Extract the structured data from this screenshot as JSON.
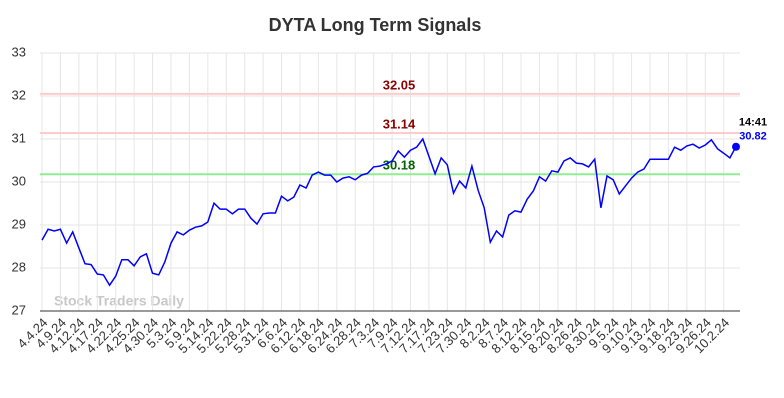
{
  "chart_data": {
    "type": "line",
    "title": "DYTA Long Term Signals",
    "categories": [
      "4.4.24",
      null,
      null,
      "4.9.24",
      null,
      null,
      "4.12.24",
      null,
      null,
      "4.17.24",
      null,
      null,
      "4.22.24",
      null,
      null,
      "4.25.24",
      null,
      null,
      "4.30.24",
      null,
      null,
      "5.3.24",
      null,
      null,
      "5.9.24",
      null,
      null,
      "5.14.24",
      null,
      null,
      "5.22.24",
      null,
      null,
      "5.28.24",
      null,
      null,
      "5.31.24",
      null,
      null,
      "6.6.24",
      null,
      null,
      "6.12.24",
      null,
      null,
      "6.18.24",
      null,
      null,
      "6.24.24",
      null,
      null,
      "6.28.24",
      null,
      null,
      "7.3.24",
      null,
      null,
      "7.9.24",
      null,
      null,
      "7.12.24",
      null,
      null,
      "7.17.24",
      null,
      null,
      "7.23.24",
      null,
      null,
      "7.30.24",
      null,
      null,
      "8.2.24",
      null,
      null,
      "8.7.24",
      null,
      null,
      "8.12.24",
      null,
      null,
      "8.15.24",
      null,
      null,
      "8.20.24",
      null,
      null,
      "8.26.24",
      null,
      null,
      "8.30.24",
      null,
      null,
      "9.5.24",
      null,
      null,
      "9.10.24",
      null,
      null,
      "9.13.24",
      null,
      null,
      "9.18.24",
      null,
      null,
      "9.23.24",
      null,
      null,
      "9.26.24",
      null,
      null,
      "10.2.24",
      null,
      null
    ],
    "values": [
      28.65,
      28.9,
      28.86,
      28.9,
      28.58,
      28.84,
      28.47,
      28.1,
      28.08,
      27.86,
      27.84,
      27.6,
      27.81,
      28.19,
      28.19,
      28.05,
      28.26,
      28.33,
      27.88,
      27.84,
      28.14,
      28.58,
      28.84,
      28.77,
      28.88,
      28.95,
      28.98,
      29.07,
      29.51,
      29.37,
      29.37,
      29.26,
      29.37,
      29.37,
      29.16,
      29.02,
      29.26,
      29.28,
      29.28,
      29.67,
      29.56,
      29.65,
      29.93,
      29.86,
      30.16,
      30.23,
      30.16,
      30.16,
      30.0,
      30.09,
      30.12,
      30.05,
      30.16,
      30.2,
      30.35,
      30.37,
      30.42,
      30.49,
      30.72,
      30.58,
      30.74,
      30.81,
      31.0,
      30.6,
      30.19,
      30.56,
      30.4,
      29.74,
      30.02,
      29.86,
      30.37,
      29.81,
      29.4,
      28.6,
      28.86,
      28.72,
      29.23,
      29.33,
      29.3,
      29.6,
      29.79,
      30.12,
      30.02,
      30.26,
      30.23,
      30.49,
      30.56,
      30.44,
      30.42,
      30.35,
      30.53,
      29.4,
      30.14,
      30.05,
      29.72,
      29.91,
      30.09,
      30.23,
      30.3,
      30.53,
      30.53,
      30.53,
      30.53,
      30.81,
      30.74,
      30.84,
      30.88,
      30.79,
      30.86,
      30.98,
      30.77,
      30.67,
      30.56,
      30.82
    ],
    "color": "#0000ff",
    "ylim": [
      27,
      33
    ],
    "yticks": [
      27,
      28,
      29,
      30,
      31,
      32,
      33
    ],
    "grid": true,
    "hlines": [
      {
        "value": 32.05,
        "color": "#ffcccc",
        "label_color": "#8b0000"
      },
      {
        "value": 31.14,
        "color": "#ffcccc",
        "label_color": "#8b0000"
      },
      {
        "value": 30.18,
        "color": "#90ee90",
        "label_color": "#006400"
      }
    ],
    "last_time": "14:41",
    "watermark": "Stock Traders Daily"
  }
}
